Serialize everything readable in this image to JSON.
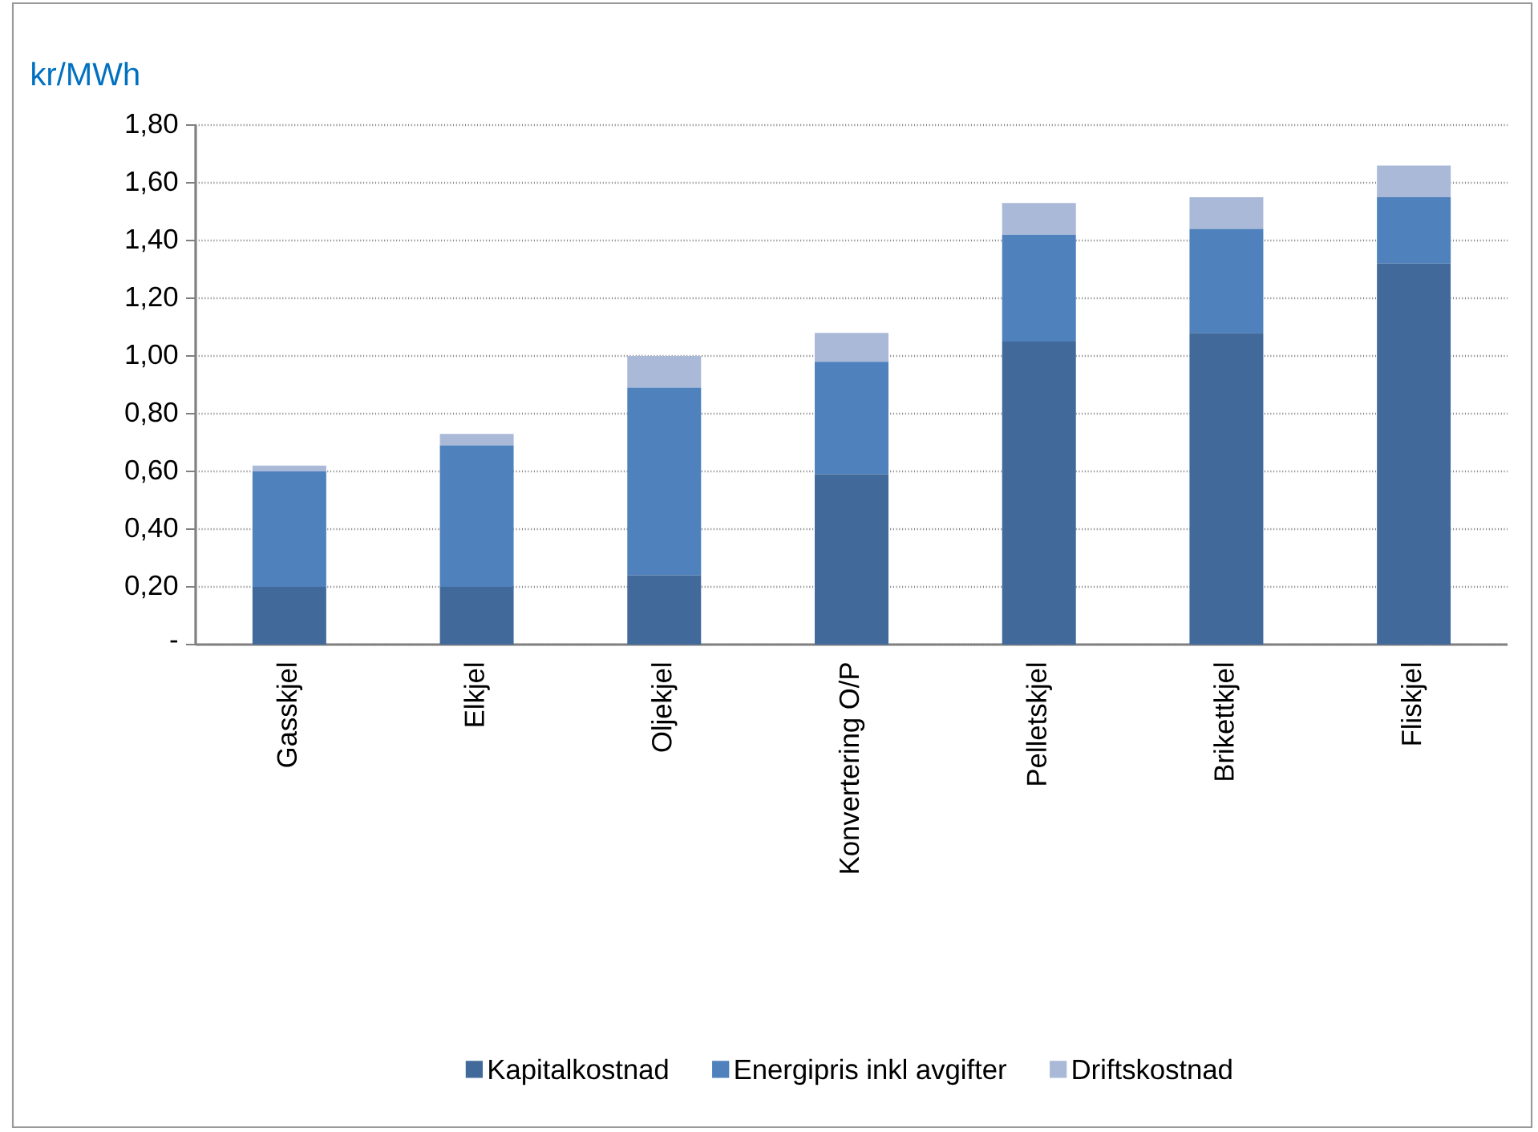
{
  "chart_data": {
    "type": "bar",
    "stacked": true,
    "ylabel": "kr/MWh",
    "categories": [
      "Gasskjel",
      "Elkjel",
      "Oljekjel",
      "Konvertering O/P",
      "Pelletskjel",
      "Brikettkjel",
      "Fliskjel"
    ],
    "series": [
      {
        "name": "Kapitalkostnad",
        "color": "#416a9b",
        "values": [
          0.2,
          0.2,
          0.24,
          0.59,
          1.05,
          1.08,
          1.32
        ]
      },
      {
        "name": "Energipris inkl avgifter",
        "color": "#4f81bd",
        "values": [
          0.4,
          0.49,
          0.65,
          0.39,
          0.37,
          0.36,
          0.23
        ]
      },
      {
        "name": "Driftskostnad",
        "color": "#aab9d8",
        "values": [
          0.02,
          0.04,
          0.11,
          0.1,
          0.11,
          0.11,
          0.11
        ]
      }
    ],
    "ylim": [
      0,
      1.8
    ],
    "yticks": [
      {
        "value": 0,
        "label": "-"
      },
      {
        "value": 0.2,
        "label": "0,20"
      },
      {
        "value": 0.4,
        "label": "0,40"
      },
      {
        "value": 0.6,
        "label": "0,60"
      },
      {
        "value": 0.8,
        "label": "0,80"
      },
      {
        "value": 1.0,
        "label": "1,00"
      },
      {
        "value": 1.2,
        "label": "1,20"
      },
      {
        "value": 1.4,
        "label": "1,40"
      },
      {
        "value": 1.6,
        "label": "1,60"
      },
      {
        "value": 1.8,
        "label": "1,80"
      }
    ],
    "grid": "y",
    "legend": "bottom"
  }
}
